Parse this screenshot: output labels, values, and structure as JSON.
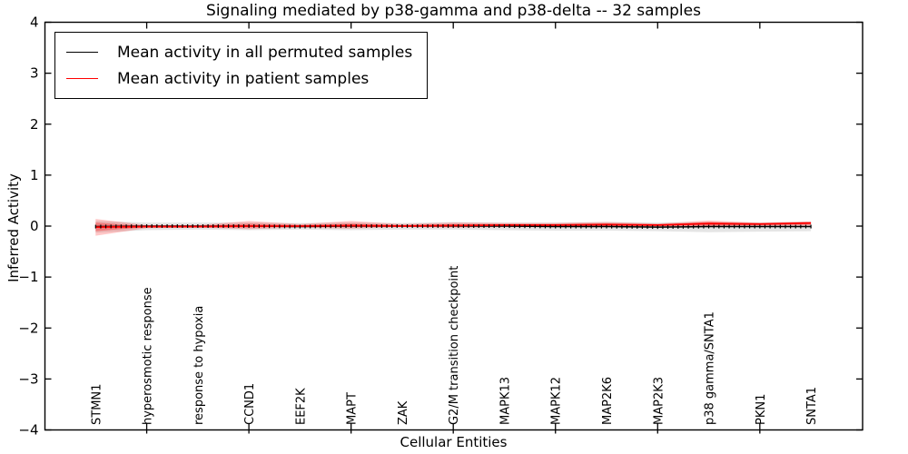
{
  "title": "Signaling mediated by p38-gamma and p38-delta -- 32 samples",
  "axes": {
    "ylabel": "Inferred Activity",
    "xlabel": "Cellular Entities",
    "ytick_labels": [
      "4",
      "3",
      "2",
      "1",
      "0",
      "−1",
      "−2",
      "−3",
      "−4"
    ],
    "ytick_values": [
      4,
      3,
      2,
      1,
      0,
      -1,
      -2,
      -3,
      -4
    ],
    "ylim": [
      -4,
      4
    ]
  },
  "legend": {
    "items": [
      {
        "label": "Mean activity in all permuted samples",
        "color": "#000000"
      },
      {
        "label": "Mean activity in patient samples",
        "color": "#ff0000"
      }
    ]
  },
  "chart_data": {
    "type": "line",
    "title": "Signaling mediated by p38-gamma and p38-delta -- 32 samples",
    "xlabel": "Cellular Entities",
    "ylabel": "Inferred Activity",
    "ylim": [
      -4,
      4
    ],
    "grid": false,
    "legend_position": "upper left",
    "categories": [
      "STMN1",
      "hyperosmotic response",
      "response to hypoxia",
      "CCND1",
      "EEF2K",
      "MAPT",
      "ZAK",
      "G2/M transition checkpoint",
      "MAPK13",
      "MAPK12",
      "MAP2K6",
      "MAP2K3",
      "p38 gamma/SNTA1",
      "PKN1",
      "SNTA1"
    ],
    "xtick_mark_indices": [
      1,
      3,
      5,
      7,
      9,
      11,
      13
    ],
    "series": [
      {
        "name": "Mean activity in all permuted samples",
        "color": "#000000",
        "values": [
          -0.01,
          0.0,
          0.0,
          0.0,
          -0.01,
          0.0,
          0.0,
          0.0,
          0.0,
          -0.01,
          -0.01,
          -0.02,
          -0.01,
          -0.01,
          -0.01
        ],
        "band_upper": [
          0.1,
          0.07,
          0.07,
          0.07,
          0.06,
          0.07,
          0.06,
          0.08,
          0.07,
          0.07,
          0.08,
          0.07,
          0.08,
          0.07,
          0.09
        ],
        "band_lower": [
          -0.13,
          -0.08,
          -0.07,
          -0.08,
          -0.07,
          -0.08,
          -0.07,
          -0.07,
          -0.08,
          -0.09,
          -0.09,
          -0.1,
          -0.12,
          -0.11,
          -0.1
        ],
        "band_color": "rgba(0,0,0,0.10)"
      },
      {
        "name": "Mean activity in patient samples",
        "color": "#ff0000",
        "values": [
          -0.02,
          -0.01,
          -0.01,
          0.0,
          0.0,
          0.01,
          0.0,
          0.01,
          0.02,
          0.02,
          0.03,
          0.02,
          0.05,
          0.04,
          0.06
        ],
        "band_upper": [
          0.14,
          0.02,
          0.02,
          0.1,
          0.04,
          0.1,
          0.04,
          0.07,
          0.06,
          0.06,
          0.08,
          0.05,
          0.11,
          0.07,
          0.09
        ],
        "band_lower": [
          -0.19,
          -0.04,
          -0.03,
          -0.06,
          -0.03,
          -0.05,
          -0.02,
          -0.03,
          -0.02,
          -0.02,
          -0.02,
          -0.01,
          -0.02,
          0.0,
          0.01
        ],
        "inner_band_upper": [
          0.07,
          0.0,
          0.0,
          0.05,
          0.02,
          0.05,
          0.02,
          0.04,
          0.04,
          0.04,
          0.05,
          0.03,
          0.08,
          0.05,
          0.07
        ],
        "inner_band_lower": [
          -0.1,
          -0.02,
          -0.02,
          -0.03,
          -0.01,
          -0.02,
          -0.01,
          -0.01,
          0.0,
          0.0,
          0.0,
          0.0,
          0.01,
          0.02,
          0.03
        ],
        "band_color": "rgba(255,0,0,0.22)",
        "inner_band_color": "rgba(255,0,0,0.30)"
      }
    ]
  }
}
